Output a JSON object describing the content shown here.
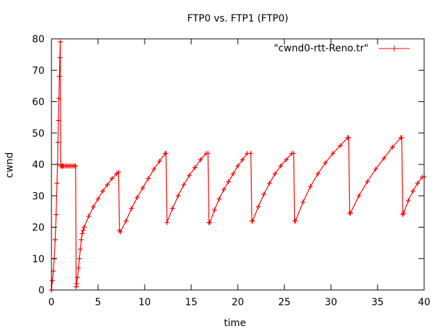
{
  "chart_data": {
    "type": "line",
    "title": "FTP0 vs. FTP1 (FTP0)",
    "xlabel": "time",
    "ylabel": "cwnd",
    "xlim": [
      0,
      40
    ],
    "ylim": [
      0,
      80
    ],
    "xticks": [
      0,
      5,
      10,
      15,
      20,
      25,
      30,
      35,
      40
    ],
    "yticks": [
      0,
      10,
      20,
      30,
      40,
      50,
      60,
      70,
      80
    ],
    "grid": false,
    "legend_position": "top-right",
    "series": [
      {
        "name": "\"cwnd0-rtt-Reno.tr\"",
        "color": "#ff0000",
        "marker": "plus",
        "x": [
          0.0,
          0.1,
          0.2,
          0.3,
          0.4,
          0.5,
          0.6,
          0.65,
          0.7,
          0.75,
          0.8,
          0.85,
          0.9,
          0.95,
          1.0,
          1.05,
          1.1,
          1.15,
          1.2,
          1.3,
          1.45,
          1.6,
          1.75,
          1.9,
          2.05,
          2.2,
          2.35,
          2.5,
          2.6,
          2.65,
          2.7,
          2.8,
          2.9,
          3.0,
          3.1,
          3.2,
          3.3,
          3.4,
          3.5,
          4.0,
          4.5,
          5.0,
          5.5,
          6.0,
          6.5,
          7.0,
          7.2,
          7.3,
          7.4,
          8.0,
          8.6,
          9.2,
          9.8,
          10.4,
          11.0,
          11.6,
          12.2,
          12.3,
          12.4,
          13.0,
          13.6,
          14.2,
          14.8,
          15.4,
          16.0,
          16.6,
          16.8,
          16.9,
          17.0,
          17.5,
          18.0,
          18.5,
          19.0,
          19.5,
          20.0,
          20.5,
          21.0,
          21.4,
          21.5,
          21.6,
          22.2,
          22.8,
          23.4,
          24.0,
          24.6,
          25.2,
          25.8,
          26.0,
          26.1,
          26.2,
          27.0,
          27.8,
          28.6,
          29.4,
          30.2,
          31.0,
          31.8,
          31.9,
          32.0,
          32.1,
          33.0,
          33.9,
          34.8,
          35.7,
          36.6,
          37.5,
          37.6,
          37.7,
          37.8,
          38.3,
          38.8,
          39.3,
          39.8,
          40.0
        ],
        "y": [
          0,
          3,
          6,
          10,
          16,
          24,
          34,
          40,
          47,
          54,
          61,
          68,
          74,
          79,
          39.5,
          39.5,
          39.5,
          39.5,
          39.5,
          39.5,
          39.5,
          39.5,
          39.5,
          39.5,
          39.5,
          39.5,
          39.5,
          39.5,
          39.5,
          1,
          2,
          4,
          7,
          10,
          13,
          16,
          18,
          19,
          20,
          23.5,
          26.5,
          29,
          31.5,
          33.5,
          35.5,
          37,
          37.5,
          19,
          18.5,
          22,
          26,
          29.5,
          32.5,
          35.5,
          38.5,
          41,
          43.5,
          43.5,
          21.5,
          26,
          30,
          33.5,
          36.5,
          39,
          41.5,
          43.5,
          43.5,
          21.5,
          21.5,
          25.5,
          29,
          32,
          34.5,
          37,
          39.5,
          41.5,
          43.5,
          43.5,
          22,
          22,
          26.5,
          30.5,
          34,
          37,
          39.5,
          41.5,
          43.5,
          43.5,
          22,
          22,
          28,
          33,
          37,
          40.5,
          43.5,
          46,
          48.5,
          48.5,
          24.5,
          24.5,
          30,
          34.5,
          38.5,
          42,
          45.5,
          48.5,
          48.5,
          24,
          24.5,
          28.5,
          31.5,
          34,
          36,
          36
        ]
      }
    ]
  }
}
